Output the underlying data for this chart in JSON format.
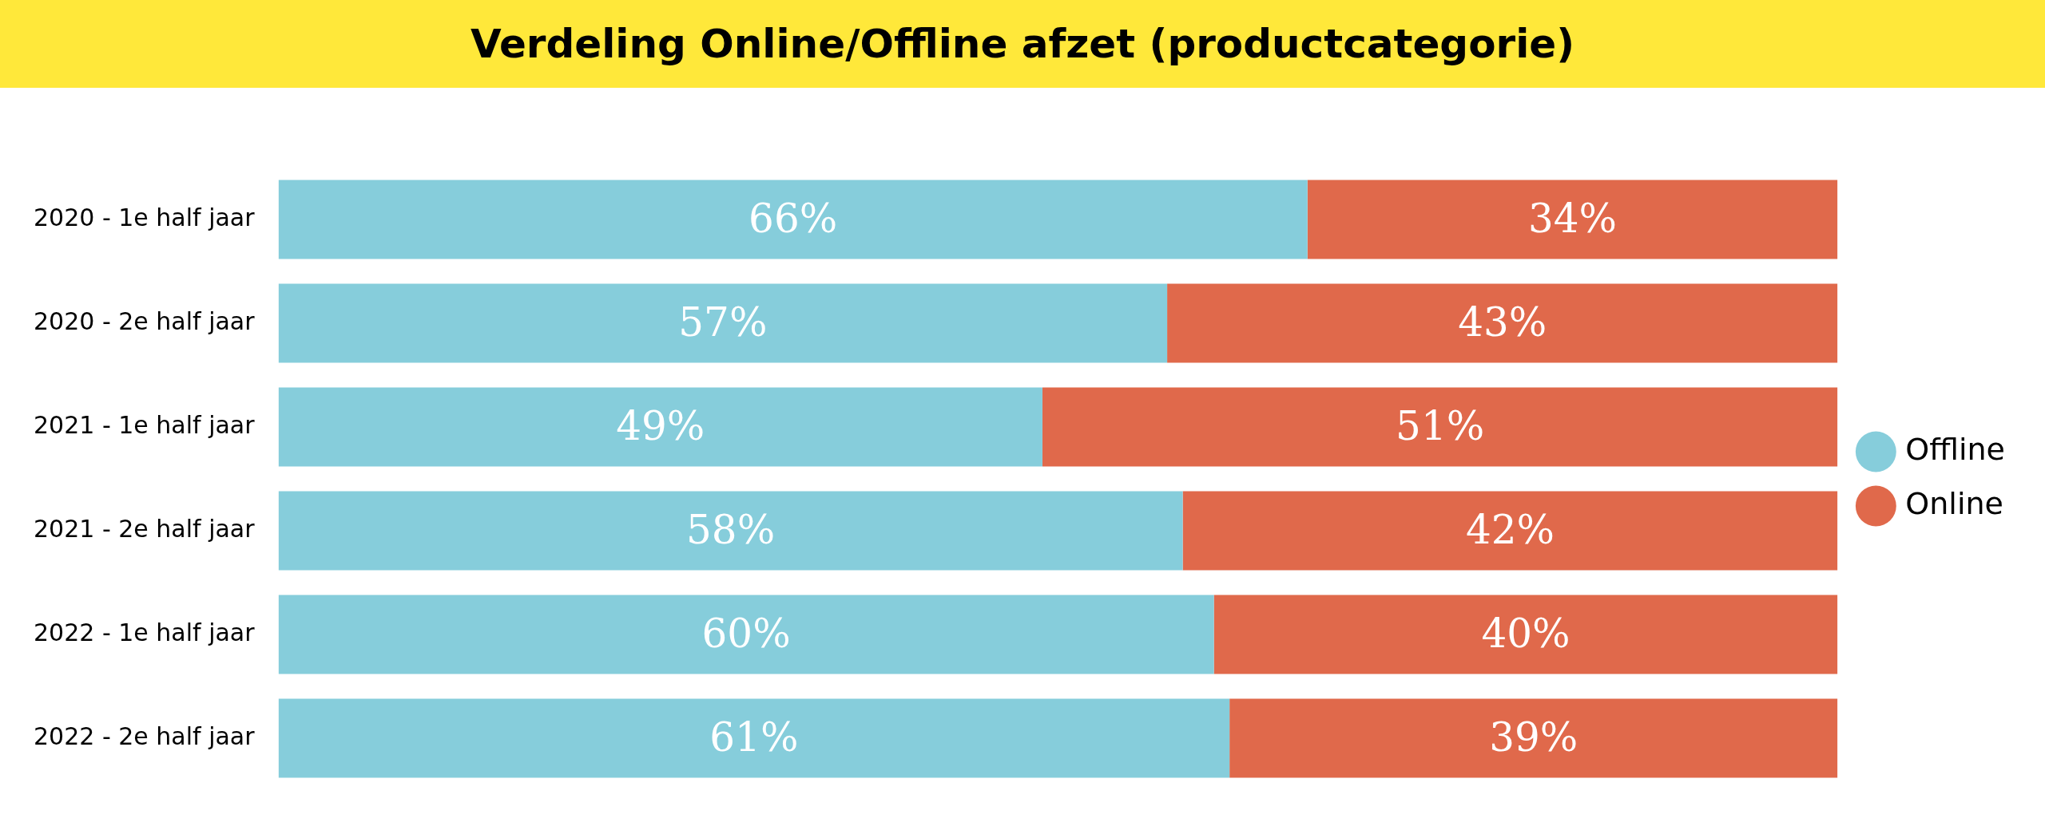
{
  "chart_data": {
    "type": "bar",
    "title": "Verdeling Online/Offline afzet (productcategorie)",
    "orientation": "horizontal",
    "stacked": true,
    "categories": [
      "2020 - 1e half jaar",
      "2020 - 2e half jaar",
      "2021 - 1e half jaar",
      "2021 - 2e half jaar",
      "2022 - 1e half jaar",
      "2022 - 2e half jaar"
    ],
    "series": [
      {
        "name": "Offline",
        "color": "#86cddb",
        "values": [
          66,
          57,
          49,
          58,
          60,
          61
        ],
        "value_labels": [
          "66%",
          "57%",
          "49%",
          "58%",
          "60%",
          "61%"
        ]
      },
      {
        "name": "Online",
        "color": "#e0694b",
        "values": [
          34,
          43,
          51,
          42,
          40,
          39
        ],
        "value_labels": [
          "34%",
          "43%",
          "51%",
          "42%",
          "40%",
          "39%"
        ]
      }
    ],
    "xlim": [
      0,
      100
    ],
    "tick_labels": "y",
    "grid": false,
    "legend": "right"
  }
}
